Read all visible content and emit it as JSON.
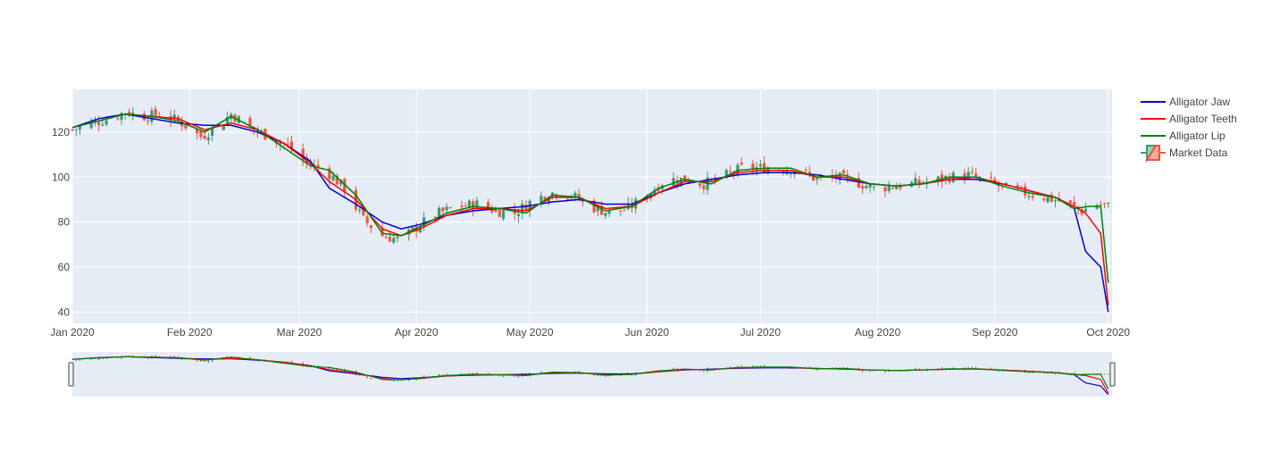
{
  "colors": {
    "plot_bg": "#e5ecf6",
    "grid": "#ffffff",
    "increasing": "#3d9970",
    "decreasing": "#ef553b",
    "jaw": "#0000cd",
    "teeth": "#ff0000",
    "lip": "#008000",
    "handle": "#444444"
  },
  "chart_data": {
    "type": "candlestick",
    "title": "",
    "xlabel": "",
    "ylabel": "",
    "x_range": [
      "2020-01-01",
      "2020-10-02"
    ],
    "y_range": [
      35,
      139
    ],
    "x_ticks": [
      {
        "date": "2020-01-01",
        "label": "Jan 2020"
      },
      {
        "date": "2020-02-01",
        "label": "Feb 2020"
      },
      {
        "date": "2020-03-01",
        "label": "Mar 2020"
      },
      {
        "date": "2020-04-01",
        "label": "Apr 2020"
      },
      {
        "date": "2020-05-01",
        "label": "May 2020"
      },
      {
        "date": "2020-06-01",
        "label": "Jun 2020"
      },
      {
        "date": "2020-07-01",
        "label": "Jul 2020"
      },
      {
        "date": "2020-08-01",
        "label": "Aug 2020"
      },
      {
        "date": "2020-09-01",
        "label": "Sep 2020"
      },
      {
        "date": "2020-10-01",
        "label": "Oct 2020"
      }
    ],
    "y_ticks": [
      40,
      60,
      80,
      100,
      120
    ],
    "grid": true,
    "legend_position": "top-right",
    "legend": [
      "Alligator Jaw",
      "Alligator Teeth",
      "Alligator Lip",
      "Market Data"
    ],
    "rangeslider": true,
    "series": [
      {
        "name": "Market Data",
        "type": "ohlc-trend",
        "points": [
          {
            "x": "2020-01-01",
            "y": 121
          },
          {
            "x": "2020-01-06",
            "y": 124
          },
          {
            "x": "2020-01-11",
            "y": 126
          },
          {
            "x": "2020-01-15",
            "y": 129
          },
          {
            "x": "2020-01-20",
            "y": 127
          },
          {
            "x": "2020-01-25",
            "y": 128
          },
          {
            "x": "2020-01-30",
            "y": 124
          },
          {
            "x": "2020-02-04",
            "y": 118
          },
          {
            "x": "2020-02-08",
            "y": 122
          },
          {
            "x": "2020-02-12",
            "y": 128
          },
          {
            "x": "2020-02-17",
            "y": 122
          },
          {
            "x": "2020-02-22",
            "y": 118
          },
          {
            "x": "2020-02-27",
            "y": 114
          },
          {
            "x": "2020-03-03",
            "y": 106
          },
          {
            "x": "2020-03-08",
            "y": 103
          },
          {
            "x": "2020-03-13",
            "y": 95
          },
          {
            "x": "2020-03-18",
            "y": 81
          },
          {
            "x": "2020-03-23",
            "y": 74
          },
          {
            "x": "2020-03-28",
            "y": 72
          },
          {
            "x": "2020-04-02",
            "y": 79
          },
          {
            "x": "2020-04-07",
            "y": 84
          },
          {
            "x": "2020-04-12",
            "y": 87
          },
          {
            "x": "2020-04-17",
            "y": 88
          },
          {
            "x": "2020-04-22",
            "y": 85
          },
          {
            "x": "2020-04-27",
            "y": 84
          },
          {
            "x": "2020-05-02",
            "y": 90
          },
          {
            "x": "2020-05-07",
            "y": 93
          },
          {
            "x": "2020-05-12",
            "y": 92
          },
          {
            "x": "2020-05-17",
            "y": 87
          },
          {
            "x": "2020-05-22",
            "y": 84
          },
          {
            "x": "2020-05-27",
            "y": 86
          },
          {
            "x": "2020-06-01",
            "y": 92
          },
          {
            "x": "2020-06-06",
            "y": 99
          },
          {
            "x": "2020-06-11",
            "y": 99
          },
          {
            "x": "2020-06-16",
            "y": 97
          },
          {
            "x": "2020-06-21",
            "y": 100
          },
          {
            "x": "2020-06-26",
            "y": 104
          },
          {
            "x": "2020-07-01",
            "y": 104
          },
          {
            "x": "2020-07-06",
            "y": 104
          },
          {
            "x": "2020-07-11",
            "y": 103
          },
          {
            "x": "2020-07-16",
            "y": 99
          },
          {
            "x": "2020-07-21",
            "y": 100
          },
          {
            "x": "2020-07-26",
            "y": 98
          },
          {
            "x": "2020-07-31",
            "y": 95
          },
          {
            "x": "2020-08-05",
            "y": 96
          },
          {
            "x": "2020-08-10",
            "y": 97
          },
          {
            "x": "2020-08-15",
            "y": 98
          },
          {
            "x": "2020-08-20",
            "y": 100
          },
          {
            "x": "2020-08-25",
            "y": 101
          },
          {
            "x": "2020-08-30",
            "y": 98
          },
          {
            "x": "2020-09-04",
            "y": 95
          },
          {
            "x": "2020-09-09",
            "y": 93
          },
          {
            "x": "2020-09-14",
            "y": 91
          },
          {
            "x": "2020-09-19",
            "y": 89
          },
          {
            "x": "2020-09-24",
            "y": 85
          },
          {
            "x": "2020-09-28",
            "y": 88
          },
          {
            "x": "2020-10-01",
            "y": 87
          }
        ]
      },
      {
        "name": "Alligator Jaw",
        "points": [
          {
            "x": "2020-01-01",
            "y": 122
          },
          {
            "x": "2020-01-08",
            "y": 126
          },
          {
            "x": "2020-01-15",
            "y": 128
          },
          {
            "x": "2020-01-22",
            "y": 126
          },
          {
            "x": "2020-01-29",
            "y": 124
          },
          {
            "x": "2020-02-05",
            "y": 123
          },
          {
            "x": "2020-02-12",
            "y": 123
          },
          {
            "x": "2020-02-19",
            "y": 120
          },
          {
            "x": "2020-02-26",
            "y": 115
          },
          {
            "x": "2020-03-04",
            "y": 107
          },
          {
            "x": "2020-03-09",
            "y": 95
          },
          {
            "x": "2020-03-16",
            "y": 88
          },
          {
            "x": "2020-03-23",
            "y": 80
          },
          {
            "x": "2020-03-28",
            "y": 77
          },
          {
            "x": "2020-04-02",
            "y": 79
          },
          {
            "x": "2020-04-09",
            "y": 83
          },
          {
            "x": "2020-04-16",
            "y": 85
          },
          {
            "x": "2020-04-23",
            "y": 86
          },
          {
            "x": "2020-04-30",
            "y": 87
          },
          {
            "x": "2020-05-07",
            "y": 89
          },
          {
            "x": "2020-05-14",
            "y": 90
          },
          {
            "x": "2020-05-21",
            "y": 88
          },
          {
            "x": "2020-05-28",
            "y": 88
          },
          {
            "x": "2020-06-04",
            "y": 93
          },
          {
            "x": "2020-06-11",
            "y": 97
          },
          {
            "x": "2020-06-18",
            "y": 99
          },
          {
            "x": "2020-06-25",
            "y": 101
          },
          {
            "x": "2020-07-02",
            "y": 102
          },
          {
            "x": "2020-07-09",
            "y": 102
          },
          {
            "x": "2020-07-16",
            "y": 101
          },
          {
            "x": "2020-07-23",
            "y": 99
          },
          {
            "x": "2020-07-30",
            "y": 97
          },
          {
            "x": "2020-08-06",
            "y": 96
          },
          {
            "x": "2020-08-13",
            "y": 97
          },
          {
            "x": "2020-08-20",
            "y": 99
          },
          {
            "x": "2020-08-27",
            "y": 99
          },
          {
            "x": "2020-09-03",
            "y": 97
          },
          {
            "x": "2020-09-10",
            "y": 94
          },
          {
            "x": "2020-09-17",
            "y": 91
          },
          {
            "x": "2020-09-22",
            "y": 86
          },
          {
            "x": "2020-09-25",
            "y": 67
          },
          {
            "x": "2020-09-29",
            "y": 60
          },
          {
            "x": "2020-10-01",
            "y": 40
          }
        ]
      },
      {
        "name": "Alligator Teeth",
        "points": [
          {
            "x": "2020-01-01",
            "y": 122
          },
          {
            "x": "2020-01-08",
            "y": 125
          },
          {
            "x": "2020-01-15",
            "y": 128
          },
          {
            "x": "2020-01-22",
            "y": 127
          },
          {
            "x": "2020-01-29",
            "y": 126
          },
          {
            "x": "2020-02-05",
            "y": 121
          },
          {
            "x": "2020-02-12",
            "y": 124
          },
          {
            "x": "2020-02-19",
            "y": 121
          },
          {
            "x": "2020-02-26",
            "y": 115
          },
          {
            "x": "2020-03-04",
            "y": 106
          },
          {
            "x": "2020-03-09",
            "y": 98
          },
          {
            "x": "2020-03-16",
            "y": 90
          },
          {
            "x": "2020-03-23",
            "y": 77
          },
          {
            "x": "2020-03-28",
            "y": 74
          },
          {
            "x": "2020-04-02",
            "y": 77
          },
          {
            "x": "2020-04-09",
            "y": 83
          },
          {
            "x": "2020-04-16",
            "y": 86
          },
          {
            "x": "2020-04-23",
            "y": 86
          },
          {
            "x": "2020-04-30",
            "y": 85
          },
          {
            "x": "2020-05-07",
            "y": 91
          },
          {
            "x": "2020-05-14",
            "y": 91
          },
          {
            "x": "2020-05-21",
            "y": 86
          },
          {
            "x": "2020-05-28",
            "y": 87
          },
          {
            "x": "2020-06-04",
            "y": 93
          },
          {
            "x": "2020-06-11",
            "y": 98
          },
          {
            "x": "2020-06-18",
            "y": 98
          },
          {
            "x": "2020-06-25",
            "y": 102
          },
          {
            "x": "2020-07-02",
            "y": 103
          },
          {
            "x": "2020-07-09",
            "y": 103
          },
          {
            "x": "2020-07-16",
            "y": 100
          },
          {
            "x": "2020-07-23",
            "y": 100
          },
          {
            "x": "2020-07-30",
            "y": 97
          },
          {
            "x": "2020-08-06",
            "y": 96
          },
          {
            "x": "2020-08-13",
            "y": 97
          },
          {
            "x": "2020-08-20",
            "y": 99
          },
          {
            "x": "2020-08-27",
            "y": 100
          },
          {
            "x": "2020-09-03",
            "y": 97
          },
          {
            "x": "2020-09-10",
            "y": 94
          },
          {
            "x": "2020-09-17",
            "y": 91
          },
          {
            "x": "2020-09-22",
            "y": 87
          },
          {
            "x": "2020-09-25",
            "y": 84
          },
          {
            "x": "2020-09-29",
            "y": 75
          },
          {
            "x": "2020-10-01",
            "y": 43
          }
        ]
      },
      {
        "name": "Alligator Lip",
        "points": [
          {
            "x": "2020-01-01",
            "y": 122
          },
          {
            "x": "2020-01-08",
            "y": 125
          },
          {
            "x": "2020-01-15",
            "y": 128
          },
          {
            "x": "2020-01-22",
            "y": 127
          },
          {
            "x": "2020-01-29",
            "y": 125
          },
          {
            "x": "2020-02-05",
            "y": 120
          },
          {
            "x": "2020-02-12",
            "y": 127
          },
          {
            "x": "2020-02-19",
            "y": 121
          },
          {
            "x": "2020-02-26",
            "y": 113
          },
          {
            "x": "2020-03-04",
            "y": 105
          },
          {
            "x": "2020-03-09",
            "y": 103
          },
          {
            "x": "2020-03-16",
            "y": 92
          },
          {
            "x": "2020-03-23",
            "y": 75
          },
          {
            "x": "2020-03-28",
            "y": 74
          },
          {
            "x": "2020-04-02",
            "y": 78
          },
          {
            "x": "2020-04-09",
            "y": 84
          },
          {
            "x": "2020-04-16",
            "y": 87
          },
          {
            "x": "2020-04-23",
            "y": 86
          },
          {
            "x": "2020-04-30",
            "y": 84
          },
          {
            "x": "2020-05-07",
            "y": 92
          },
          {
            "x": "2020-05-14",
            "y": 91
          },
          {
            "x": "2020-05-21",
            "y": 85
          },
          {
            "x": "2020-05-28",
            "y": 87
          },
          {
            "x": "2020-06-04",
            "y": 95
          },
          {
            "x": "2020-06-11",
            "y": 99
          },
          {
            "x": "2020-06-18",
            "y": 97
          },
          {
            "x": "2020-06-25",
            "y": 103
          },
          {
            "x": "2020-07-02",
            "y": 104
          },
          {
            "x": "2020-07-09",
            "y": 104
          },
          {
            "x": "2020-07-16",
            "y": 100
          },
          {
            "x": "2020-07-23",
            "y": 101
          },
          {
            "x": "2020-07-30",
            "y": 97
          },
          {
            "x": "2020-08-06",
            "y": 96
          },
          {
            "x": "2020-08-13",
            "y": 97
          },
          {
            "x": "2020-08-20",
            "y": 100
          },
          {
            "x": "2020-08-27",
            "y": 100
          },
          {
            "x": "2020-09-03",
            "y": 96
          },
          {
            "x": "2020-09-10",
            "y": 93
          },
          {
            "x": "2020-09-17",
            "y": 91
          },
          {
            "x": "2020-09-22",
            "y": 86
          },
          {
            "x": "2020-09-26",
            "y": 87
          },
          {
            "x": "2020-09-29",
            "y": 87
          },
          {
            "x": "2020-10-01",
            "y": 53
          }
        ]
      }
    ]
  }
}
